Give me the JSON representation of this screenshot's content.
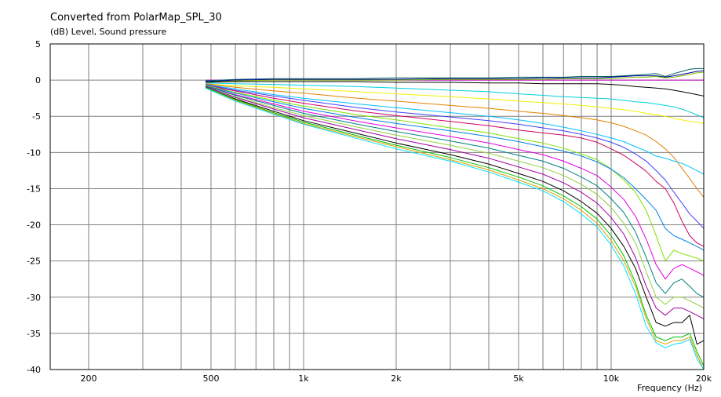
{
  "chart_data": {
    "type": "line",
    "title": "Converted from PolarMap_SPL_30",
    "ylabel": "(dB)  Level, Sound pressure",
    "xlabel": "Frequency  (Hz)",
    "x_scale": "log",
    "xlim": [
      150,
      20000
    ],
    "ylim": [
      -40,
      5
    ],
    "grid": true,
    "legend": "none",
    "x_ticks": [
      {
        "value": 200,
        "label": "200"
      },
      {
        "value": 500,
        "label": "500"
      },
      {
        "value": 1000,
        "label": "1k"
      },
      {
        "value": 2000,
        "label": "2k"
      },
      {
        "value": 5000,
        "label": "5k"
      },
      {
        "value": 10000,
        "label": "10k"
      },
      {
        "value": 20000,
        "label": "20k"
      }
    ],
    "y_ticks": [
      {
        "value": 5,
        "label": "5"
      },
      {
        "value": 0,
        "label": "0"
      },
      {
        "value": -5,
        "label": "-5"
      },
      {
        "value": -10,
        "label": "-10"
      },
      {
        "value": -15,
        "label": "-15"
      },
      {
        "value": -20,
        "label": "-20"
      },
      {
        "value": -25,
        "label": "-25"
      },
      {
        "value": -30,
        "label": "-30"
      },
      {
        "value": -35,
        "label": "-35"
      },
      {
        "value": -40,
        "label": "-40"
      }
    ],
    "x": [
      480,
      600,
      800,
      1000,
      1500,
      2000,
      3000,
      4000,
      5000,
      6000,
      7000,
      8000,
      9000,
      10000,
      11000,
      12000,
      13000,
      14000,
      15000,
      16000,
      17000,
      18000,
      19000,
      20000
    ],
    "series": [
      {
        "color": "#c000c0",
        "values": [
          0,
          0,
          0,
          0,
          0,
          0,
          0,
          0,
          0,
          0,
          0,
          0,
          0,
          0,
          0,
          0,
          0,
          0,
          0,
          0,
          0,
          0,
          0,
          0
        ]
      },
      {
        "color": "#006060",
        "values": [
          -0.1,
          0.1,
          0.2,
          0.2,
          0.2,
          0.3,
          0.3,
          0.3,
          0.4,
          0.4,
          0.4,
          0.5,
          0.5,
          0.5,
          0.6,
          0.7,
          0.8,
          0.9,
          0.5,
          0.9,
          1.2,
          1.5,
          1.6,
          1.6
        ]
      },
      {
        "color": "#0000a0",
        "values": [
          -0.2,
          0.0,
          0.1,
          0.1,
          0.1,
          0.1,
          0.2,
          0.2,
          0.2,
          0.3,
          0.3,
          0.3,
          0.3,
          0.4,
          0.5,
          0.6,
          0.6,
          0.6,
          0.4,
          0.6,
          0.8,
          1.0,
          1.2,
          1.3
        ]
      },
      {
        "color": "#80c000",
        "values": [
          -0.3,
          -0.1,
          0,
          0,
          0,
          0,
          0.1,
          0.1,
          0.1,
          0.1,
          0.2,
          0.2,
          0.2,
          0.2,
          0.3,
          0.4,
          0.4,
          0.5,
          0.3,
          0.4,
          0.6,
          0.8,
          1.0,
          1.1
        ]
      },
      {
        "color": "#000000",
        "values": [
          -0.3,
          -0.2,
          -0.2,
          -0.2,
          -0.2,
          -0.3,
          -0.3,
          -0.4,
          -0.4,
          -0.5,
          -0.5,
          -0.5,
          -0.5,
          -0.6,
          -0.7,
          -0.9,
          -1.0,
          -1.1,
          -1.2,
          -1.4,
          -1.6,
          -1.8,
          -2.0,
          -2.2
        ]
      },
      {
        "color": "#00d0e0",
        "values": [
          -0.4,
          -0.5,
          -0.6,
          -0.7,
          -0.9,
          -1.1,
          -1.4,
          -1.6,
          -1.9,
          -2.1,
          -2.3,
          -2.4,
          -2.5,
          -2.6,
          -2.8,
          -3.0,
          -3.1,
          -3.3,
          -3.5,
          -3.7,
          -4.0,
          -4.4,
          -4.8,
          -5.2
        ]
      },
      {
        "color": "#f0f000",
        "values": [
          -0.5,
          -0.8,
          -1.0,
          -1.2,
          -1.6,
          -1.9,
          -2.3,
          -2.6,
          -2.9,
          -3.1,
          -3.3,
          -3.5,
          -3.7,
          -3.9,
          -4.1,
          -4.3,
          -4.6,
          -4.8,
          -5.0,
          -5.3,
          -5.5,
          -5.7,
          -5.8,
          -6.0
        ]
      },
      {
        "color": "#e08000",
        "values": [
          -0.5,
          -1.0,
          -1.5,
          -1.8,
          -2.5,
          -2.9,
          -3.5,
          -3.9,
          -4.3,
          -4.6,
          -4.9,
          -5.2,
          -5.5,
          -5.9,
          -6.4,
          -7.0,
          -7.6,
          -8.5,
          -9.5,
          -10.7,
          -12.2,
          -13.6,
          -15.0,
          -16.2
        ]
      },
      {
        "color": "#00c0ff",
        "values": [
          -0.6,
          -1.2,
          -2.0,
          -2.5,
          -3.3,
          -3.8,
          -4.5,
          -5.0,
          -5.5,
          -6.0,
          -6.5,
          -7.0,
          -7.5,
          -8.0,
          -8.5,
          -9.2,
          -9.8,
          -10.5,
          -10.8,
          -11.2,
          -11.5,
          -12.0,
          -12.5,
          -13.0
        ]
      },
      {
        "color": "#d00060",
        "values": [
          -0.7,
          -1.5,
          -2.5,
          -3.2,
          -4.3,
          -4.9,
          -5.7,
          -6.3,
          -6.9,
          -7.3,
          -7.6,
          -8.0,
          -8.6,
          -9.5,
          -10.4,
          -11.5,
          -12.6,
          -14.0,
          -15.0,
          -17.0,
          -19.5,
          -21.5,
          -22.5,
          -23.0
        ]
      },
      {
        "color": "#4040ff",
        "values": [
          -0.6,
          -1.4,
          -2.2,
          -2.8,
          -3.8,
          -4.4,
          -5.1,
          -5.6,
          -6.1,
          -6.6,
          -7.0,
          -7.5,
          -8.0,
          -8.6,
          -9.3,
          -10.2,
          -11.2,
          -12.5,
          -13.8,
          -15.5,
          -17.0,
          -18.5,
          -19.5,
          -20.5
        ]
      },
      {
        "color": "#80e000",
        "values": [
          -0.7,
          -1.7,
          -2.8,
          -3.6,
          -4.8,
          -5.5,
          -6.6,
          -7.3,
          -8.1,
          -8.7,
          -9.4,
          -10.2,
          -11.0,
          -12.3,
          -13.8,
          -15.5,
          -18.0,
          -21.5,
          -25.0,
          -23.5,
          -24.0,
          -24.3,
          -24.6,
          -25.0
        ]
      },
      {
        "color": "#0080e0",
        "values": [
          -0.8,
          -1.8,
          -3.0,
          -3.9,
          -5.2,
          -6.0,
          -7.0,
          -7.8,
          -8.5,
          -9.2,
          -9.8,
          -10.5,
          -11.3,
          -12.3,
          -13.5,
          -15.0,
          -16.5,
          -18.0,
          -20.5,
          -21.5,
          -22.0,
          -22.5,
          -23.0,
          -23.5
        ]
      },
      {
        "color": "#e000e0",
        "values": [
          -0.8,
          -2.0,
          -3.3,
          -4.3,
          -5.7,
          -6.6,
          -7.8,
          -8.7,
          -9.6,
          -10.3,
          -11.2,
          -12.2,
          -13.2,
          -14.8,
          -16.5,
          -18.8,
          -22.0,
          -25.5,
          -27.5,
          -26.0,
          -25.5,
          -26.0,
          -26.5,
          -27.0
        ]
      },
      {
        "color": "#008080",
        "values": [
          -0.8,
          -2.1,
          -3.5,
          -4.6,
          -6.1,
          -7.1,
          -8.4,
          -9.4,
          -10.4,
          -11.2,
          -12.2,
          -13.4,
          -14.6,
          -16.4,
          -18.3,
          -21.0,
          -24.5,
          -28.0,
          -29.5,
          -28.0,
          -27.5,
          -28.5,
          -29.5,
          -30.0
        ]
      },
      {
        "color": "#90d040",
        "values": [
          -0.9,
          -2.3,
          -3.8,
          -4.9,
          -6.5,
          -7.6,
          -9.0,
          -10.1,
          -11.2,
          -12.1,
          -13.2,
          -14.4,
          -15.8,
          -17.6,
          -19.8,
          -22.5,
          -26.5,
          -30.0,
          -31.0,
          -30.0,
          -30.0,
          -30.5,
          -31.0,
          -31.5
        ]
      },
      {
        "color": "#a000a0",
        "values": [
          -0.9,
          -2.4,
          -4.0,
          -5.2,
          -6.9,
          -8.1,
          -9.6,
          -10.8,
          -12.0,
          -13.0,
          -14.2,
          -15.5,
          -17.0,
          -19.0,
          -21.3,
          -24.5,
          -28.5,
          -31.5,
          -32.5,
          -31.5,
          -31.5,
          -32.0,
          -32.5,
          -33.0
        ]
      },
      {
        "color": "#000000",
        "values": [
          -1.0,
          -2.6,
          -4.3,
          -5.6,
          -7.4,
          -8.7,
          -10.3,
          -11.6,
          -12.9,
          -14.0,
          -15.3,
          -16.8,
          -18.4,
          -20.5,
          -23.0,
          -26.0,
          -30.0,
          -33.5,
          -34.0,
          -33.5,
          -33.5,
          -32.5,
          -36.5,
          -36.0
        ]
      },
      {
        "color": "#00c000",
        "values": [
          -1.0,
          -2.7,
          -4.5,
          -5.8,
          -7.7,
          -9.0,
          -10.7,
          -12.1,
          -13.4,
          -14.6,
          -16.0,
          -17.5,
          -19.2,
          -21.5,
          -24.3,
          -28.0,
          -32.5,
          -35.5,
          -36.0,
          -35.5,
          -35.5,
          -35.0,
          -37.5,
          -39.5
        ]
      },
      {
        "color": "#e0a000",
        "values": [
          -1.1,
          -2.8,
          -4.6,
          -6.0,
          -7.9,
          -9.2,
          -11.0,
          -12.4,
          -13.8,
          -15.0,
          -16.4,
          -18.0,
          -19.8,
          -22.2,
          -25.0,
          -28.5,
          -33.0,
          -36.0,
          -36.5,
          -36.0,
          -36.0,
          -35.5,
          -38.0,
          -40.0
        ]
      },
      {
        "color": "#00e0ff",
        "values": [
          -1.1,
          -2.9,
          -4.7,
          -6.1,
          -8.1,
          -9.5,
          -11.2,
          -12.7,
          -14.1,
          -15.3,
          -16.8,
          -18.5,
          -20.3,
          -22.8,
          -25.7,
          -29.5,
          -34.0,
          -36.3,
          -37.0,
          -36.5,
          -36.3,
          -35.8,
          -38.5,
          -40.0
        ]
      }
    ]
  }
}
